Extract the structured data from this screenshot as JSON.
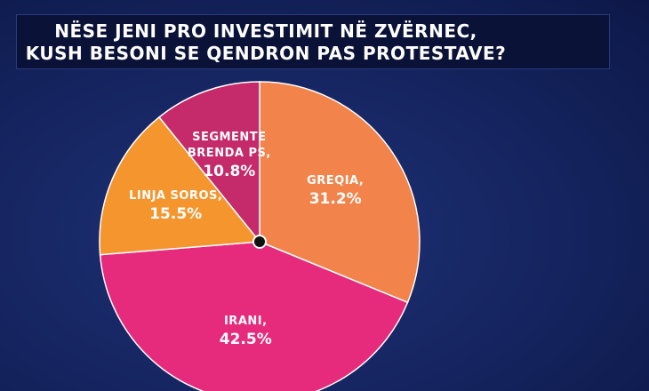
{
  "chart_data": {
    "type": "pie",
    "title_lines": [
      "NËSE JENI PRO INVESTIMIT NË ZVËRNEC,",
      "KUSH BESONI SE QENDRON PAS PROTESTAVE?"
    ],
    "categories": [
      "GREQIA,",
      "IRANI,",
      "LINJA SOROS,",
      "SEGMENTE BRENDA PS,"
    ],
    "values": [
      31.2,
      42.5,
      15.5,
      10.8
    ],
    "value_labels": [
      "31.2%",
      "42.5%",
      "15.5%",
      "10.8%"
    ],
    "colors": [
      "#f2834a",
      "#e62a7c",
      "#f4952e",
      "#c52a6a"
    ]
  }
}
